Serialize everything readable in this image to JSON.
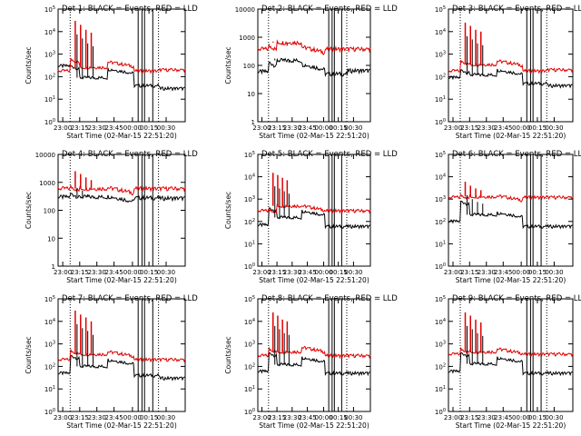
{
  "chart_data": [
    {
      "type": "line",
      "title": "Det 1: BLACK = Events, RED = LLD",
      "ylabel": "Counts/sec",
      "xlabel": "Start Time (02-Mar-15 22:51:20)",
      "x_ticks": [
        "23:00",
        "23:15",
        "23:30",
        "23:45",
        "00:00",
        "00:15",
        "00:30"
      ],
      "ylim": [
        1,
        100000
      ],
      "yscale": "log",
      "y_ticks": [
        "10^0",
        "10^1",
        "10^2",
        "10^3",
        "10^4",
        "10^5"
      ],
      "series": [
        {
          "color": "#000000"
        },
        {
          "color": "#e00000"
        }
      ],
      "profile": {
        "black_base": 40,
        "red_base": 180,
        "pre_black": 300,
        "pre_red": 180,
        "start_black": 300,
        "start_red": 600,
        "flat_black": 90,
        "flat_red": 260,
        "step_black": 220,
        "step_red": 450,
        "spikes": [
          30000,
          20000,
          12000,
          9000
        ],
        "tail_black": 30,
        "tail_red": 200
      }
    },
    {
      "type": "line",
      "title": "Det 2: BLACK = Events, RED = LLD",
      "ylabel": "Counts/sec",
      "xlabel": "Start Time (02-Mar-15 22:51:20)",
      "x_ticks": [
        "23:00",
        "23:15",
        "23:30",
        "23:45",
        "00:00",
        "00:15",
        "00:30"
      ],
      "ylim": [
        1,
        10000
      ],
      "yscale": "log",
      "y_ticks": [
        "1",
        "10",
        "100",
        "1000",
        "10000"
      ],
      "series": [
        {
          "color": "#000000"
        },
        {
          "color": "#e00000"
        }
      ],
      "profile": {
        "black_base": 50,
        "red_base": 380,
        "pre_black": 60,
        "pre_red": 380,
        "start_black": 130,
        "start_red": 500,
        "flat_black": 150,
        "flat_red": 650,
        "step_black": 110,
        "step_red": 450,
        "spikes": [
          700,
          600,
          550,
          500
        ],
        "tail_black": 65,
        "tail_red": 380
      }
    },
    {
      "type": "line",
      "title": "Det 3: BLACK = Events, RED = LLD",
      "ylabel": "",
      "xlabel": "Start Time (02-Mar-15 22:51:20)",
      "x_ticks": [
        "23:00",
        "23:15",
        "23:30",
        "23:45",
        "00:00",
        "00:15",
        "00:30"
      ],
      "ylim": [
        1,
        100000
      ],
      "yscale": "log",
      "y_ticks": [
        "10^0",
        "10^1",
        "10^2",
        "10^3",
        "10^4",
        "10^5"
      ],
      "series": [
        {
          "color": "#000000"
        },
        {
          "color": "#e00000"
        }
      ],
      "profile": {
        "black_base": 50,
        "red_base": 180,
        "pre_black": 90,
        "pre_red": 180,
        "start_black": 200,
        "start_red": 500,
        "flat_black": 120,
        "flat_red": 350,
        "step_black": 200,
        "step_red": 500,
        "spikes": [
          25000,
          18000,
          12000,
          10000
        ],
        "tail_black": 40,
        "tail_red": 200
      }
    },
    {
      "type": "line",
      "title": "Det 4: BLACK = Events, RED = LLD",
      "ylabel": "Counts/sec",
      "xlabel": "Start Time (02-Mar-15 22:51:20)",
      "x_ticks": [
        "23:00",
        "23:15",
        "23:30",
        "23:45",
        "00:00",
        "00:15",
        "00:30"
      ],
      "ylim": [
        1,
        10000
      ],
      "yscale": "log",
      "y_ticks": [
        "1",
        "10",
        "100",
        "1000",
        "10000"
      ],
      "series": [
        {
          "color": "#000000"
        },
        {
          "color": "#e00000"
        }
      ],
      "profile": {
        "black_base": 280,
        "red_base": 600,
        "pre_black": 300,
        "pre_red": 600,
        "start_black": 400,
        "start_red": 700,
        "flat_black": 300,
        "flat_red": 600,
        "step_black": 320,
        "step_red": 650,
        "spikes": [
          2500,
          2000,
          1500,
          1200
        ],
        "tail_black": 270,
        "tail_red": 600
      }
    },
    {
      "type": "line",
      "title": "Det 5: BLACK = Events, RED = LLD",
      "ylabel": "Counts/sec",
      "xlabel": "Start Time (02-Mar-15 22:51:20)",
      "x_ticks": [
        "23:00",
        "23:15",
        "23:30",
        "23:45",
        "00:00",
        "00:15",
        "00:30"
      ],
      "ylim": [
        1,
        100000
      ],
      "yscale": "log",
      "y_ticks": [
        "10^0",
        "10^1",
        "10^2",
        "10^3",
        "10^4",
        "10^5"
      ],
      "series": [
        {
          "color": "#000000"
        },
        {
          "color": "#e00000"
        }
      ],
      "profile": {
        "black_base": 60,
        "red_base": 300,
        "pre_black": 70,
        "pre_red": 300,
        "start_black": 400,
        "start_red": 350,
        "flat_black": 150,
        "flat_red": 500,
        "step_black": 300,
        "step_red": 500,
        "spikes": [
          15000,
          12000,
          9000,
          7000
        ],
        "tail_black": 60,
        "tail_red": 300
      }
    },
    {
      "type": "line",
      "title": "Det 6: BLACK = Events, RED = LLD",
      "ylabel": "",
      "xlabel": "Start Time (02-Mar-15 22:51:20)",
      "x_ticks": [
        "23:00",
        "23:15",
        "23:30",
        "23:45",
        "00:00",
        "00:15",
        "00:30"
      ],
      "ylim": [
        1,
        100000
      ],
      "yscale": "log",
      "y_ticks": [
        "10^0",
        "10^1",
        "10^2",
        "10^3",
        "10^4",
        "10^5"
      ],
      "series": [
        {
          "color": "#000000"
        },
        {
          "color": "#e00000"
        }
      ],
      "profile": {
        "black_base": 60,
        "red_base": 1200,
        "pre_black": 100,
        "pre_red": 1200,
        "start_black": 800,
        "start_red": 1500,
        "flat_black": 200,
        "flat_red": 1300,
        "step_black": 250,
        "step_red": 1400,
        "spikes": [
          6000,
          4000,
          3000,
          2500
        ],
        "tail_black": 60,
        "tail_red": 1200
      }
    },
    {
      "type": "line",
      "title": "Det 7: BLACK = Events, RED = LLD",
      "ylabel": "Counts/sec",
      "xlabel": "Start Time (02-Mar-15 22:51:20)",
      "x_ticks": [
        "23:00",
        "23:15",
        "23:30",
        "23:45",
        "00:00",
        "00:15",
        "00:30"
      ],
      "ylim": [
        1,
        100000
      ],
      "yscale": "log",
      "y_ticks": [
        "10^0",
        "10^1",
        "10^2",
        "10^3",
        "10^4",
        "10^5"
      ],
      "series": [
        {
          "color": "#000000"
        },
        {
          "color": "#e00000"
        }
      ],
      "profile": {
        "black_base": 40,
        "red_base": 200,
        "pre_black": 50,
        "pre_red": 200,
        "start_black": 300,
        "start_red": 500,
        "flat_black": 100,
        "flat_red": 350,
        "step_black": 200,
        "step_red": 450,
        "spikes": [
          30000,
          20000,
          15000,
          10000
        ],
        "tail_black": 30,
        "tail_red": 200
      }
    },
    {
      "type": "line",
      "title": "Det 8: BLACK = Events, RED = LLD",
      "ylabel": "Counts/sec",
      "xlabel": "Start Time (02-Mar-15 22:51:20)",
      "x_ticks": [
        "23:00",
        "23:15",
        "23:30",
        "23:45",
        "00:00",
        "00:15",
        "00:30"
      ],
      "ylim": [
        1,
        100000
      ],
      "yscale": "log",
      "y_ticks": [
        "10^0",
        "10^1",
        "10^2",
        "10^3",
        "10^4",
        "10^5"
      ],
      "series": [
        {
          "color": "#000000"
        },
        {
          "color": "#e00000"
        }
      ],
      "profile": {
        "black_base": 50,
        "red_base": 300,
        "pre_black": 60,
        "pre_red": 300,
        "start_black": 400,
        "start_red": 600,
        "flat_black": 120,
        "flat_red": 450,
        "step_black": 250,
        "step_red": 700,
        "spikes": [
          25000,
          18000,
          12000,
          10000
        ],
        "tail_black": 50,
        "tail_red": 300
      }
    },
    {
      "type": "line",
      "title": "Det 9: BLACK = Events, RED = LLD",
      "ylabel": "",
      "xlabel": "Start Time (02-Mar-15 22:51:20)",
      "x_ticks": [
        "23:00",
        "23:15",
        "23:30",
        "23:45",
        "00:00",
        "00:15",
        "00:30"
      ],
      "ylim": [
        1,
        100000
      ],
      "yscale": "log",
      "y_ticks": [
        "10^0",
        "10^1",
        "10^2",
        "10^3",
        "10^4",
        "10^5"
      ],
      "series": [
        {
          "color": "#000000"
        },
        {
          "color": "#e00000"
        }
      ],
      "profile": {
        "black_base": 50,
        "red_base": 350,
        "pre_black": 60,
        "pre_red": 350,
        "start_black": 400,
        "start_red": 600,
        "flat_black": 130,
        "flat_red": 450,
        "step_black": 250,
        "step_red": 600,
        "spikes": [
          25000,
          18000,
          12000,
          9000
        ],
        "tail_black": 50,
        "tail_red": 350
      }
    }
  ]
}
